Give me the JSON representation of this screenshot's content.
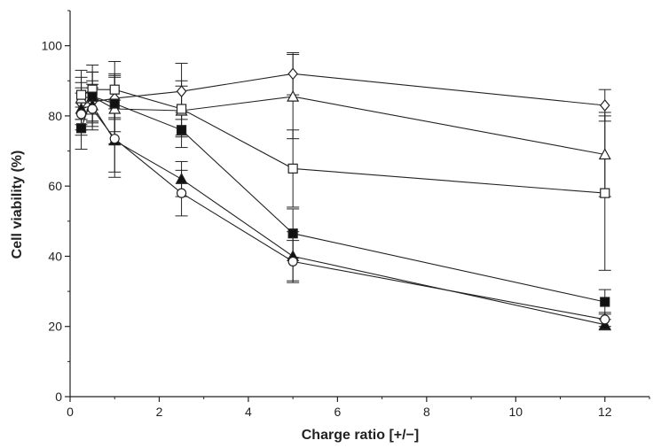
{
  "chart_data": {
    "type": "line",
    "xlabel": "Charge ratio [+/−]",
    "ylabel": "Cell viability (%)",
    "xlim": [
      0,
      13
    ],
    "ylim": [
      0,
      110
    ],
    "xticks": [
      0,
      2,
      4,
      6,
      8,
      10,
      12
    ],
    "xtick_labels": [
      "0",
      "2",
      "4",
      "6",
      "8",
      "10",
      "12"
    ],
    "yticks": [
      0,
      20,
      40,
      60,
      80,
      100
    ],
    "ytick_labels": [
      "0",
      "20",
      "40",
      "60",
      "80",
      "100"
    ],
    "grid": false,
    "legend": false,
    "colors": {
      "line": "#222222",
      "axis": "#222222",
      "marker_fill_open": "#ffffff",
      "marker_fill_closed": "#111111"
    },
    "series": [
      {
        "marker": "open-diamond",
        "x": [
          0.25,
          0.5,
          1,
          2.5,
          5,
          12
        ],
        "y": [
          83.5,
          84,
          85,
          87,
          92,
          83
        ],
        "err": [
          6,
          6,
          6,
          8,
          6,
          4.5
        ]
      },
      {
        "marker": "open-triangle",
        "x": [
          0.25,
          0.5,
          1,
          2.5,
          5,
          12
        ],
        "y": [
          85,
          85.5,
          82,
          81.5,
          85.5,
          69
        ],
        "err": [
          6,
          7,
          10,
          7,
          12,
          12
        ]
      },
      {
        "marker": "open-square",
        "x": [
          0.25,
          0.5,
          1,
          2.5,
          5,
          12
        ],
        "y": [
          86,
          87.5,
          87.5,
          82,
          65,
          58
        ],
        "err": [
          7,
          7,
          8,
          8,
          11,
          22
        ]
      },
      {
        "marker": "filled-square",
        "x": [
          0.25,
          0.5,
          1,
          2.5,
          5,
          12
        ],
        "y": [
          76.5,
          85.5,
          83.5,
          76,
          46.5,
          27
        ],
        "err": [
          6,
          7,
          8,
          5,
          7,
          3.5
        ]
      },
      {
        "marker": "filled-triangle",
        "x": [
          0.25,
          0.5,
          1,
          2.5,
          5,
          12
        ],
        "y": [
          82,
          83,
          73,
          62,
          40,
          20.5
        ],
        "err": [
          6,
          6,
          9,
          5,
          7,
          1.5
        ]
      },
      {
        "marker": "open-circle",
        "x": [
          0.25,
          0.5,
          1,
          2.5,
          5,
          12
        ],
        "y": [
          80.5,
          82,
          73.5,
          58,
          38.5,
          22
        ],
        "err": [
          6,
          6,
          11,
          6.5,
          6,
          2
        ]
      }
    ]
  }
}
